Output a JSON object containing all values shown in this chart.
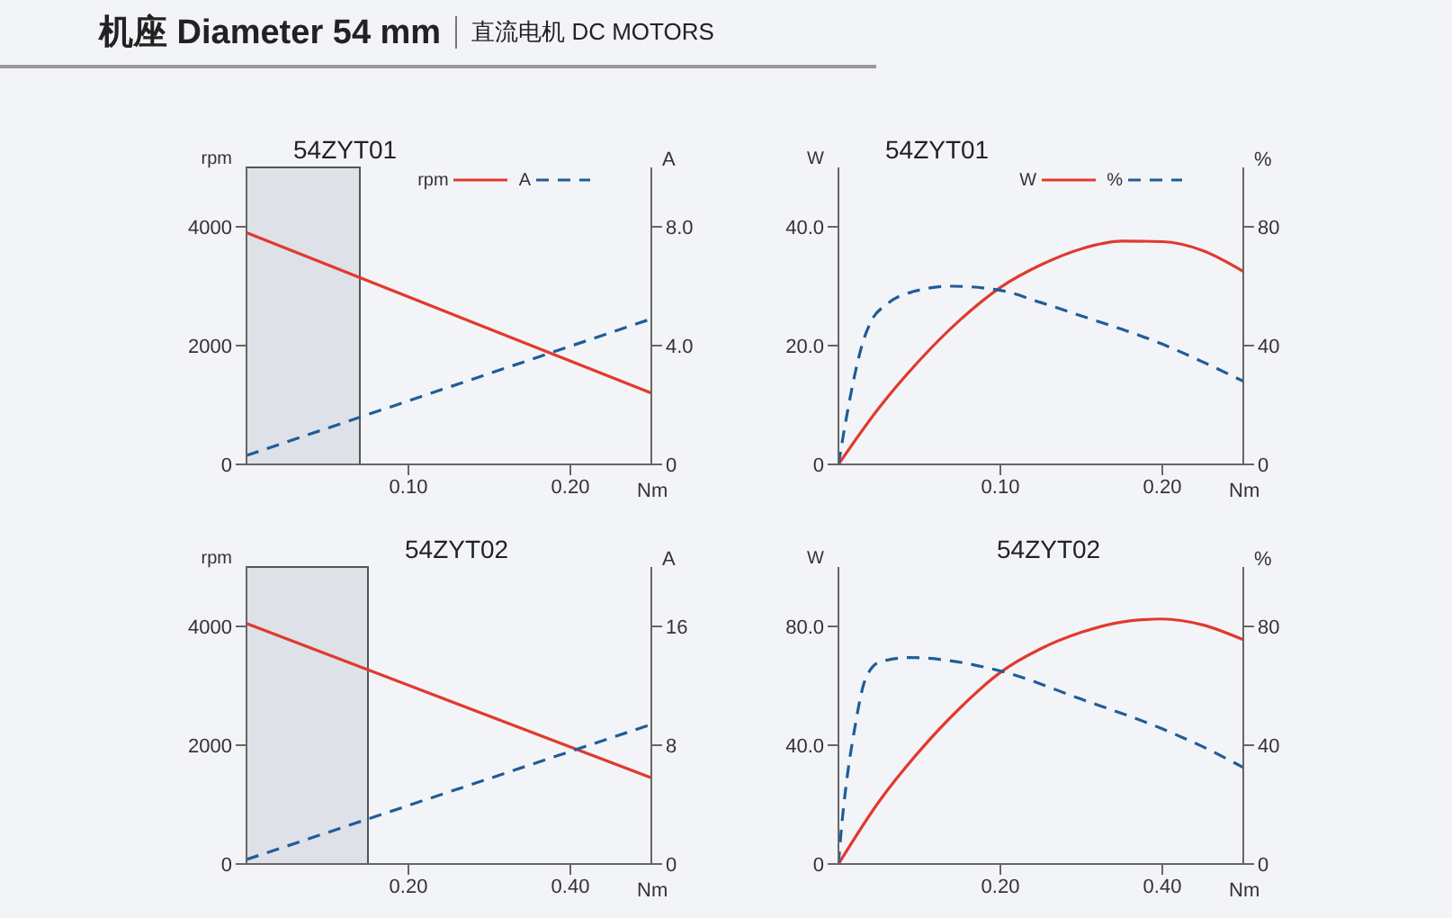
{
  "chart_data": [
    {
      "type": "line",
      "title": "54ZYT01",
      "annotations": [
        "机座 Diameter 54 mm",
        "直流电机 DC MOTORS"
      ],
      "xlabel": "Nm",
      "ylabel": "rpm",
      "y2label": "A",
      "xlim": [
        0,
        0.25
      ],
      "xticks": [
        {
          "value": 0.1,
          "label": "0.10"
        },
        {
          "value": 0.2,
          "label": "0.20"
        }
      ],
      "ylim": [
        0,
        5000
      ],
      "yticks": [
        0,
        2000,
        4000
      ],
      "y2lim": [
        0,
        10
      ],
      "y2ticks": [
        0,
        {
          "value": 4,
          "label": "4.0"
        },
        {
          "value": 8,
          "label": "8.0"
        }
      ],
      "legend": "top right",
      "marker": "none",
      "bands": [
        {
          "axis": "x",
          "from": 0,
          "to": 0.07,
          "color": "#d9dce3"
        }
      ],
      "series": [
        {
          "name": "rpm",
          "color": "#e03a2e",
          "line_style": "solid",
          "x": [
            0,
            0.25
          ],
          "values": [
            3900,
            1200
          ]
        },
        {
          "name": "A",
          "color": "#1e5d9a",
          "line_style": "dashed",
          "axis": "y2",
          "x": [
            0,
            0.25
          ],
          "values": [
            0.3,
            4.9
          ]
        }
      ]
    },
    {
      "type": "line",
      "title": "54ZYT01",
      "xlabel": "Nm",
      "ylabel": "W",
      "y2label": "%",
      "xlim": [
        0,
        0.25
      ],
      "xticks": [
        {
          "value": 0.1,
          "label": "0.10"
        },
        {
          "value": 0.2,
          "label": "0.20"
        }
      ],
      "ylim": [
        0,
        50
      ],
      "yticks": [
        0,
        {
          "value": 20,
          "label": "20.0"
        },
        {
          "value": 40,
          "label": "40.0"
        }
      ],
      "y2lim": [
        0,
        100
      ],
      "y2ticks": [
        0,
        40,
        80
      ],
      "legend": "top right",
      "marker": "none",
      "series": [
        {
          "name": "W",
          "color": "#e03a2e",
          "line_style": "solid",
          "x": [
            0,
            0.025,
            0.05,
            0.075,
            0.1,
            0.125,
            0.15,
            0.175,
            0.2,
            0.225,
            0.25
          ],
          "values": [
            0,
            9.5,
            17.5,
            24.3,
            29.8,
            33.6,
            36.3,
            37.6,
            37.5,
            36,
            32.5
          ]
        },
        {
          "name": "%",
          "color": "#1e5d9a",
          "line_style": "dashed",
          "axis": "y2",
          "x": [
            0,
            0.005,
            0.01,
            0.015,
            0.02,
            0.03,
            0.045,
            0.07,
            0.1,
            0.125,
            0.15,
            0.175,
            0.2,
            0.225,
            0.25
          ],
          "values": [
            0,
            16,
            30,
            41,
            48,
            54,
            58,
            60,
            58.6,
            54.5,
            50,
            45.5,
            40.5,
            34.5,
            28
          ]
        }
      ]
    },
    {
      "type": "line",
      "title": "54ZYT02",
      "xlabel": "Nm",
      "ylabel": "rpm",
      "y2label": "A",
      "xlim": [
        0,
        0.5
      ],
      "xticks": [
        {
          "value": 0.2,
          "label": "0.20"
        },
        {
          "value": 0.4,
          "label": "0.40"
        }
      ],
      "ylim": [
        0,
        5000
      ],
      "yticks": [
        0,
        2000,
        4000
      ],
      "y2lim": [
        0,
        20
      ],
      "y2ticks": [
        0,
        8,
        16
      ],
      "marker": "none",
      "bands": [
        {
          "axis": "x",
          "from": 0,
          "to": 0.15,
          "color": "#d9dce3"
        }
      ],
      "series": [
        {
          "color": "#e03a2e",
          "line_style": "solid",
          "x": [
            0,
            0.5
          ],
          "values": [
            4050,
            1450
          ]
        },
        {
          "color": "#1e5d9a",
          "line_style": "dashed",
          "axis": "y2",
          "x": [
            0,
            0.5
          ],
          "values": [
            0.3,
            9.4
          ]
        }
      ]
    },
    {
      "type": "line",
      "title": "54ZYT02",
      "xlabel": "Nm",
      "ylabel": "W",
      "y2label": "%",
      "xlim": [
        0,
        0.5
      ],
      "xticks": [
        {
          "value": 0.2,
          "label": "0.20"
        },
        {
          "value": 0.4,
          "label": "0.40"
        }
      ],
      "ylim": [
        0,
        100
      ],
      "yticks": [
        0,
        {
          "value": 40,
          "label": "40.0"
        },
        {
          "value": 80,
          "label": "80.0"
        }
      ],
      "y2lim": [
        0,
        100
      ],
      "y2ticks": [
        0,
        40,
        80
      ],
      "marker": "none",
      "series": [
        {
          "color": "#e03a2e",
          "line_style": "solid",
          "x": [
            0,
            0.05,
            0.1,
            0.15,
            0.2,
            0.25,
            0.3,
            0.35,
            0.4,
            0.45,
            0.5
          ],
          "values": [
            0,
            21,
            38,
            52.5,
            64.5,
            72.5,
            78,
            81.5,
            82.5,
            80.5,
            75.5
          ]
        },
        {
          "color": "#1e5d9a",
          "line_style": "dashed",
          "axis": "y2",
          "x": [
            0,
            0.003,
            0.009,
            0.02,
            0.033,
            0.051,
            0.087,
            0.2,
            0.3,
            0.4,
            0.45,
            0.5
          ],
          "values": [
            0,
            10,
            25.5,
            45.5,
            62,
            68,
            69.5,
            65,
            55.5,
            45.5,
            39.5,
            32.5
          ]
        }
      ]
    }
  ]
}
